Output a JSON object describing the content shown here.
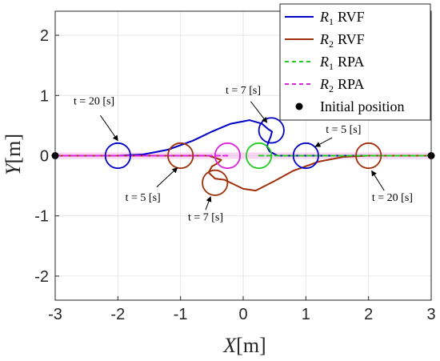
{
  "chart_data": {
    "type": "line",
    "xlabel": {
      "symbol": "X",
      "unit": "[m]"
    },
    "ylabel": {
      "symbol": "Y",
      "unit": "[m]"
    },
    "xlim": [
      -3,
      3
    ],
    "ylim": [
      -2.4,
      2.4
    ],
    "xticks": [
      -3,
      -2,
      -1,
      0,
      1,
      2,
      3
    ],
    "yticks": [
      -2,
      -1,
      0,
      1,
      2
    ],
    "grid": true,
    "legend": {
      "placement": "top-right",
      "entries": [
        {
          "sym": "R",
          "sub": "1",
          "txt": "RVF",
          "color": "#0000c8",
          "style": "solid"
        },
        {
          "sym": "R",
          "sub": "2",
          "txt": "RVF",
          "color": "#a0300a",
          "style": "solid"
        },
        {
          "sym": "R",
          "sub": "1",
          "txt": "RPA",
          "color": "#22cc22",
          "style": "dashed"
        },
        {
          "sym": "R",
          "sub": "2",
          "txt": "RPA",
          "color": "#dd22dd",
          "style": "dashed"
        },
        {
          "sym": "",
          "sub": "",
          "txt": "Initial position",
          "color": "#000000",
          "style": "marker"
        }
      ]
    },
    "series": [
      {
        "name": "R1 RVF",
        "color": "#0000c8",
        "points": [
          [
            -3,
            0
          ],
          [
            -2.5,
            0
          ],
          [
            -2.0,
            0
          ],
          [
            -1.6,
            0.02
          ],
          [
            -1.2,
            0.1
          ],
          [
            -0.8,
            0.25
          ],
          [
            -0.5,
            0.4
          ],
          [
            -0.2,
            0.53
          ],
          [
            0.1,
            0.59
          ],
          [
            0.3,
            0.53
          ],
          [
            0.4,
            0.44
          ],
          [
            0.46,
            0.4
          ],
          [
            0.44,
            0.32
          ],
          [
            0.4,
            0.22
          ],
          [
            0.38,
            0.15
          ],
          [
            0.42,
            0.07
          ],
          [
            0.55,
            0.0
          ],
          [
            0.8,
            0.0
          ],
          [
            1.0,
            0.0
          ],
          [
            1.5,
            0.0
          ],
          [
            2.0,
            0.0
          ],
          [
            3.0,
            0.0
          ]
        ]
      },
      {
        "name": "R2 RVF",
        "color": "#a0300a",
        "points": [
          [
            3,
            0
          ],
          [
            2.5,
            0
          ],
          [
            2.0,
            0
          ],
          [
            1.6,
            -0.02
          ],
          [
            1.2,
            -0.1
          ],
          [
            0.8,
            -0.25
          ],
          [
            0.5,
            -0.42
          ],
          [
            0.2,
            -0.58
          ],
          [
            0.0,
            -0.55
          ],
          [
            -0.3,
            -0.4
          ],
          [
            -0.45,
            -0.38
          ],
          [
            -0.55,
            -0.28
          ],
          [
            -0.5,
            -0.18
          ],
          [
            -0.4,
            -0.12
          ],
          [
            -0.35,
            -0.07
          ],
          [
            -0.55,
            0.0
          ],
          [
            -1.0,
            0.0
          ],
          [
            -1.5,
            0.0
          ],
          [
            -2.0,
            0.0
          ],
          [
            -3.0,
            0.0
          ]
        ]
      },
      {
        "name": "R1 RPA",
        "color": "#22cc22",
        "dashed": true,
        "points": [
          [
            0.25,
            0
          ],
          [
            3,
            0
          ]
        ]
      },
      {
        "name": "R2 RPA",
        "color": "#dd22dd",
        "dashed": true,
        "points": [
          [
            -3,
            0
          ],
          [
            -0.25,
            0
          ]
        ]
      }
    ],
    "circles": [
      {
        "cx": -2.0,
        "cy": 0.0,
        "r": 0.2,
        "color": "#0000c8"
      },
      {
        "cx": 0.45,
        "cy": 0.42,
        "r": 0.2,
        "color": "#0000c8"
      },
      {
        "cx": 1.0,
        "cy": 0.0,
        "r": 0.2,
        "color": "#0000c8"
      },
      {
        "cx": -1.0,
        "cy": 0.0,
        "r": 0.2,
        "color": "#a0300a"
      },
      {
        "cx": -0.45,
        "cy": -0.45,
        "r": 0.2,
        "color": "#a0300a"
      },
      {
        "cx": 2.0,
        "cy": 0.0,
        "r": 0.2,
        "color": "#a0300a"
      },
      {
        "cx": 0.25,
        "cy": 0.0,
        "r": 0.2,
        "color": "#22cc22"
      },
      {
        "cx": -0.25,
        "cy": 0.0,
        "r": 0.2,
        "color": "#dd22dd"
      }
    ],
    "initial_positions": [
      [
        -3,
        0
      ],
      [
        3,
        0
      ]
    ],
    "annotations": [
      {
        "text": "t = 20 [s]",
        "tx": -2.38,
        "ty": 0.85,
        "ax": -2.0,
        "ay": 0.25,
        "from_x": -2.28,
        "from_y": 0.67
      },
      {
        "text": "t = 7 [s]",
        "tx": 0.0,
        "ty": 1.03,
        "ax": 0.38,
        "ay": 0.55,
        "from_x": 0.12,
        "from_y": 0.9
      },
      {
        "text": "t = 5 [s]",
        "tx": 1.6,
        "ty": 0.38,
        "ax": 1.15,
        "ay": 0.15,
        "from_x": 1.42,
        "from_y": 0.3
      },
      {
        "text": "t = 5 [s]",
        "tx": -1.6,
        "ty": -0.75,
        "ax": -1.05,
        "ay": -0.2,
        "from_x": -1.38,
        "from_y": -0.52
      },
      {
        "text": "t = 7 [s]",
        "tx": -0.6,
        "ty": -1.08,
        "ax": -0.52,
        "ay": -0.68,
        "from_x": -0.6,
        "from_y": -0.9
      },
      {
        "text": "t = 20 [s]",
        "tx": 2.38,
        "ty": -0.75,
        "ax": 2.05,
        "ay": -0.25,
        "from_x": 2.25,
        "from_y": -0.58
      }
    ]
  }
}
